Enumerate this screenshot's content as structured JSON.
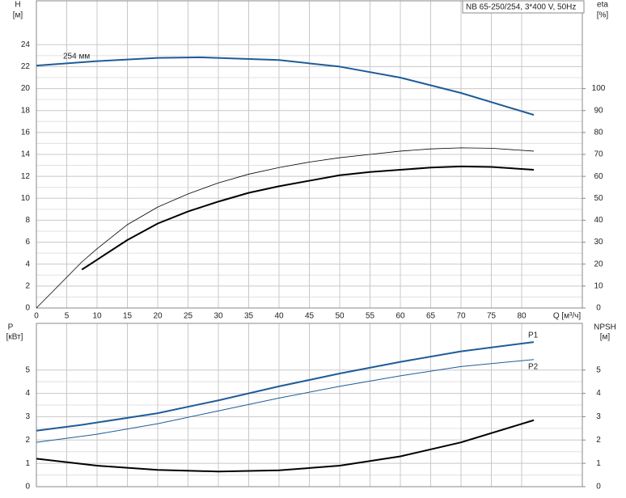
{
  "chart_data": [
    {
      "type": "line",
      "title": "NB 65-250/254, 3*400 V, 50Hz",
      "x_label": "Q [м³/ч]",
      "y_label": "H",
      "y_unit": "[м]",
      "y2_label": "eta",
      "y2_unit": "[%]",
      "xlim": [
        0,
        90
      ],
      "xticks": [
        0,
        5,
        10,
        15,
        20,
        25,
        30,
        35,
        40,
        45,
        50,
        55,
        60,
        65,
        70,
        75,
        80
      ],
      "ylim": [
        0,
        28
      ],
      "yticks": [
        0,
        2,
        4,
        6,
        8,
        10,
        12,
        14,
        16,
        18,
        20,
        22,
        24
      ],
      "y2lim": [
        0,
        140
      ],
      "y2ticks": [
        0,
        10,
        20,
        30,
        40,
        50,
        60,
        70,
        80,
        90,
        100
      ],
      "grid": true,
      "series": [
        {
          "curve_label": "254 мм",
          "label_position": "start",
          "color": "#1f5c99",
          "width": 2,
          "x": [
            0,
            10,
            20,
            27,
            40,
            50,
            60,
            70,
            82
          ],
          "values": [
            22.1,
            22.5,
            22.8,
            22.85,
            22.6,
            22.0,
            21.0,
            19.6,
            17.6
          ]
        },
        {
          "axis": "y2",
          "color": "#000000",
          "width": 0.8,
          "x": [
            0,
            7.5,
            10,
            15,
            20,
            25,
            30,
            35,
            40,
            45,
            50,
            55,
            60,
            65,
            70,
            75,
            82
          ],
          "values": [
            0,
            21,
            27,
            38,
            46,
            52,
            57,
            61,
            64,
            66.5,
            68.5,
            70,
            71.5,
            72.5,
            73,
            72.8,
            71.5
          ]
        },
        {
          "axis": "y2",
          "color": "#000000",
          "width": 2,
          "x": [
            7.5,
            10,
            15,
            20,
            25,
            30,
            35,
            40,
            45,
            50,
            55,
            60,
            65,
            70,
            75,
            82
          ],
          "values": [
            17.5,
            22,
            31,
            38.5,
            44,
            48.5,
            52.5,
            55.5,
            58,
            60.5,
            62,
            63,
            64,
            64.5,
            64.3,
            63
          ]
        }
      ]
    },
    {
      "type": "line",
      "y_label": "P",
      "y_unit": "[кВт]",
      "y2_label": "NPSH",
      "y2_unit": "[м]",
      "xlim": [
        0,
        90
      ],
      "xticks": [
        0,
        5,
        10,
        15,
        20,
        25,
        30,
        35,
        40,
        45,
        50,
        55,
        60,
        65,
        70,
        75,
        80
      ],
      "ylim": [
        0,
        7
      ],
      "yticks": [
        0,
        1,
        2,
        3,
        4,
        5
      ],
      "y2lim": [
        0,
        7
      ],
      "y2ticks": [
        0,
        1,
        2,
        3,
        4,
        5
      ],
      "grid": true,
      "series": [
        {
          "curve_label": "P1",
          "label_position": "end",
          "color": "#1f5c99",
          "width": 2,
          "x": [
            0,
            7.5,
            20,
            30,
            40,
            50,
            60,
            70,
            82
          ],
          "values": [
            2.4,
            2.65,
            3.15,
            3.7,
            4.3,
            4.85,
            5.35,
            5.8,
            6.2
          ]
        },
        {
          "curve_label": "P2",
          "label_position": "end",
          "color": "#1f5c99",
          "width": 1,
          "x": [
            0,
            10,
            20,
            30,
            40,
            50,
            60,
            70,
            82
          ],
          "values": [
            1.9,
            2.25,
            2.7,
            3.25,
            3.8,
            4.3,
            4.75,
            5.15,
            5.45
          ]
        },
        {
          "axis": "y2",
          "color": "#000000",
          "width": 2,
          "x": [
            0,
            10,
            20,
            30,
            40,
            50,
            60,
            70,
            82
          ],
          "values": [
            1.2,
            0.9,
            0.72,
            0.65,
            0.7,
            0.9,
            1.3,
            1.9,
            2.85
          ]
        }
      ]
    }
  ]
}
